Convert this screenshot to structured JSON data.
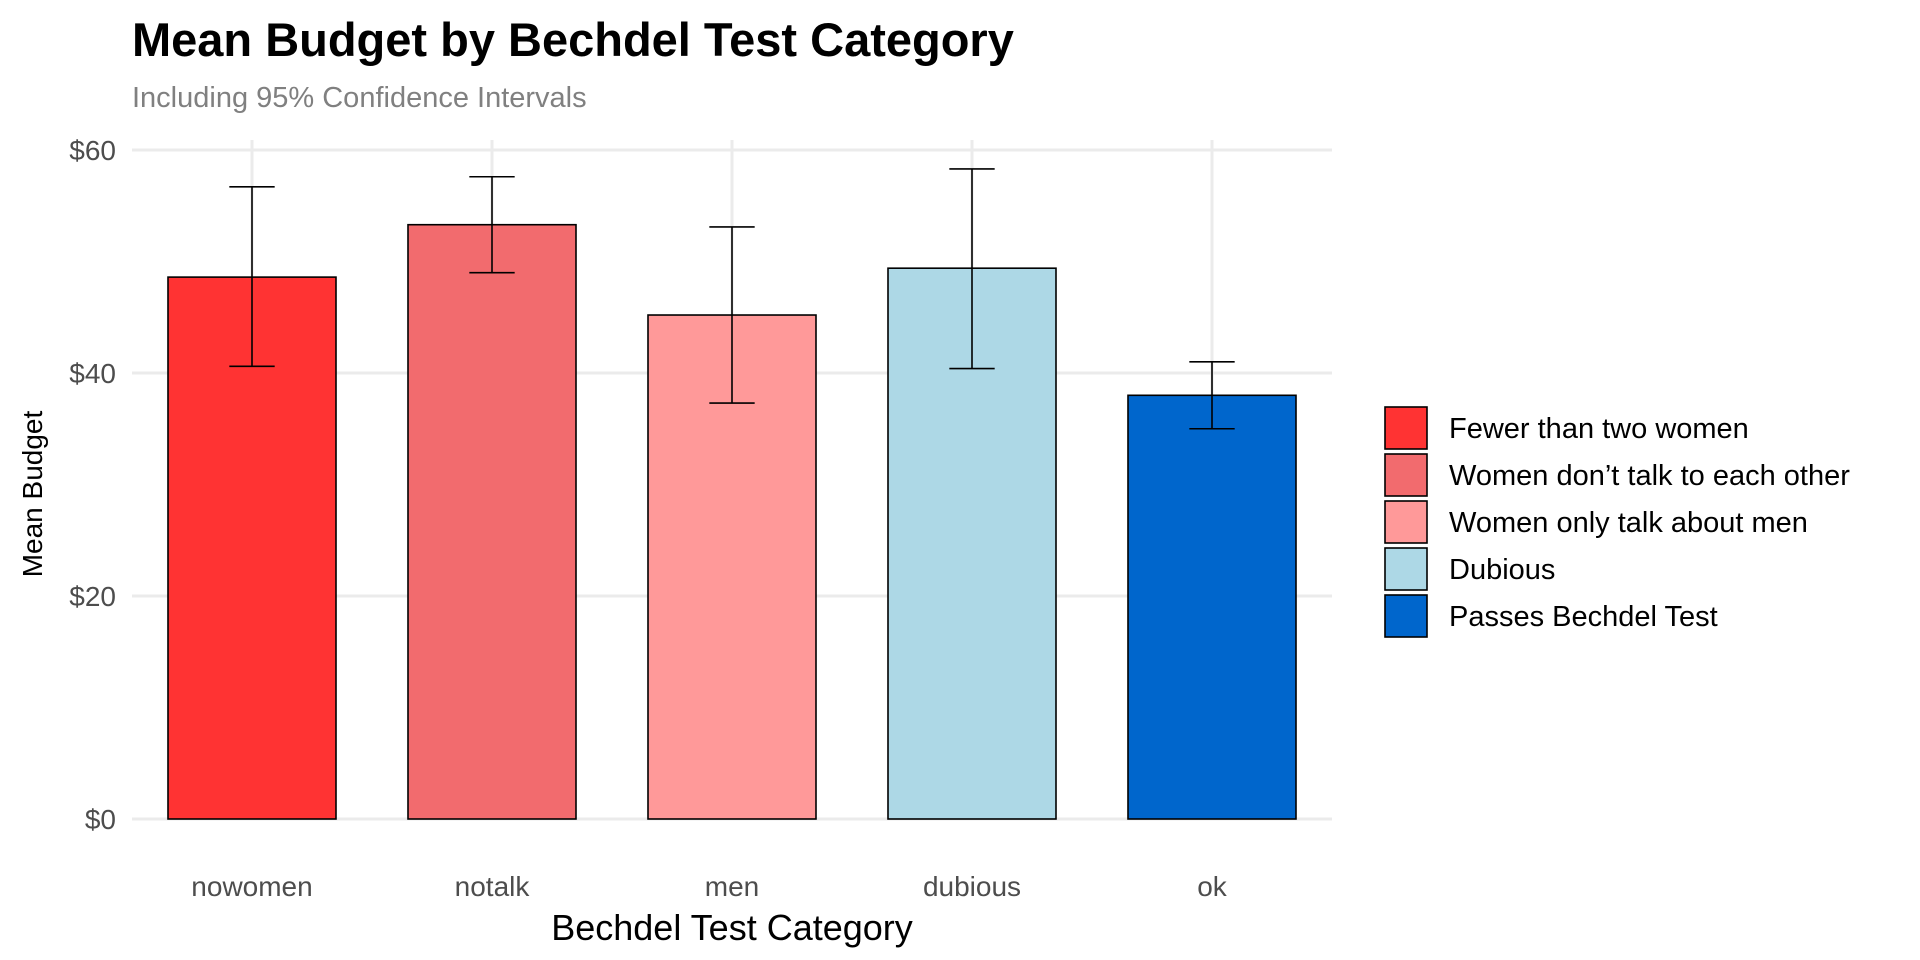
{
  "chart_data": {
    "type": "bar",
    "title": "Mean Budget by Bechdel Test Category",
    "subtitle": "Including 95% Confidence Intervals",
    "xlabel": "Bechdel Test Category",
    "ylabel": "Mean Budget",
    "categories": [
      "nowomen",
      "notalk",
      "men",
      "dubious",
      "ok"
    ],
    "values": [
      48.6,
      53.3,
      45.2,
      49.4,
      38.0
    ],
    "ci_lower": [
      40.6,
      49.0,
      37.3,
      40.4,
      35.0
    ],
    "ci_upper": [
      56.7,
      57.6,
      53.1,
      58.3,
      41.0
    ],
    "ylim": [
      0,
      60
    ],
    "y_ticks": [
      0,
      20,
      40,
      60
    ],
    "y_tick_labels": [
      "$0",
      "$20",
      "$40",
      "$60"
    ],
    "grid": true,
    "legend_position": "right",
    "legend": [
      {
        "label": "Fewer than two women",
        "color": "#FF3333"
      },
      {
        "label": "Women don’t talk to each other",
        "color": "#F26B6E"
      },
      {
        "label": "Women only talk about men",
        "color": "#FF9999"
      },
      {
        "label": "Dubious",
        "color": "#ADD8E6"
      },
      {
        "label": "Passes Bechdel Test",
        "color": "#0066CC"
      }
    ],
    "bar_colors": [
      "#FF3333",
      "#F26B6E",
      "#FF9999",
      "#ADD8E6",
      "#0066CC"
    ]
  }
}
